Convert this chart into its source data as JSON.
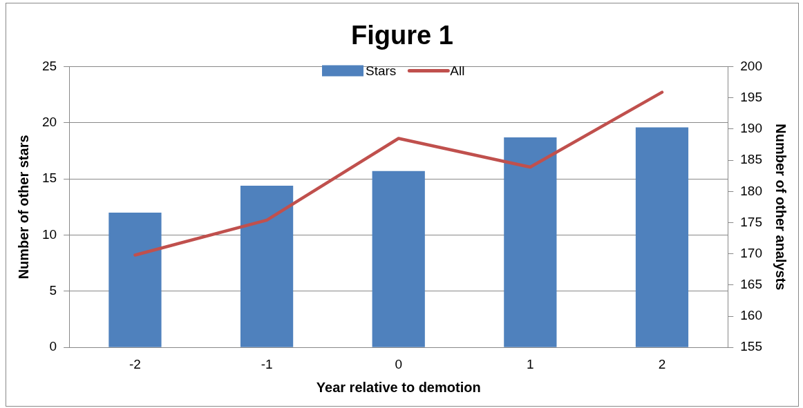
{
  "chart_data": {
    "type": "bar",
    "title": "Figure 1",
    "xlabel": "Year relative to demotion",
    "ylabel": "Number of other stars",
    "y2label": "Number of other analysts",
    "categories": [
      "-2",
      "-1",
      "0",
      "1",
      "2"
    ],
    "series": [
      {
        "name": "Stars",
        "color": "#4f81bd",
        "values": [
          12.0,
          14.4,
          15.7,
          18.7,
          19.6
        ]
      },
      {
        "name": "All",
        "type": "line",
        "axis": "y2",
        "color": "#c0504d",
        "values": [
          169.8,
          175.4,
          188.5,
          183.9,
          195.9
        ]
      }
    ],
    "ylim": [
      0,
      25
    ],
    "yticks": [
      0,
      5,
      10,
      15,
      20,
      25
    ],
    "y2lim": [
      155,
      200
    ],
    "y2ticks": [
      155,
      160,
      165,
      170,
      175,
      180,
      185,
      190,
      195,
      200
    ],
    "grid": "y",
    "legend": "top",
    "marker": "none"
  }
}
